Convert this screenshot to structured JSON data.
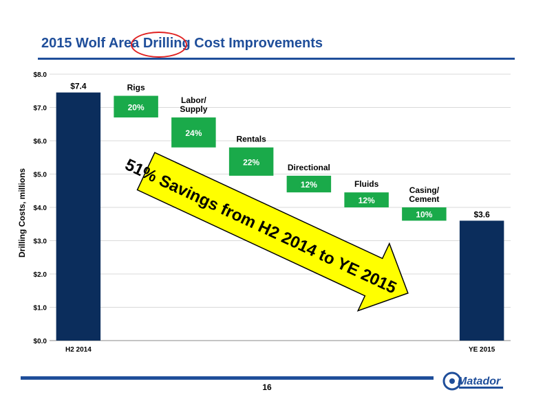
{
  "slide": {
    "title": "2015 Wolf Area Drilling Cost Improvements",
    "page_number": "16",
    "callout": "51% Savings from H2 2014 to YE 2015",
    "logo_text": "Matador"
  },
  "colors": {
    "title": "#1f4e9a",
    "total_bar": "#0b2d5c",
    "savings_bar": "#1aaa4a",
    "arrow_fill": "#ffff00",
    "annotation_circle": "#e02020"
  },
  "chart_data": {
    "type": "bar",
    "subtype": "waterfall",
    "ylabel": "Drilling Costs, millions",
    "ylim": [
      0,
      8
    ],
    "yticks": [
      "$0.0",
      "$1.0",
      "$2.0",
      "$3.0",
      "$4.0",
      "$5.0",
      "$6.0",
      "$7.0",
      "$8.0"
    ],
    "grid": true,
    "categories": [
      "H2 2014",
      "Rigs",
      "Labor/ Supply",
      "Rentals",
      "Directional",
      "Fluids",
      "Casing/ Cement",
      "YE 2015"
    ],
    "xtick_labels": [
      "H2 2014",
      "",
      "",
      "",
      "",
      "",
      "",
      "YE 2015"
    ],
    "bars": [
      {
        "name": "H2 2014",
        "kind": "total",
        "start": 0,
        "end": 7.45,
        "label": "$7.4",
        "top_label": ""
      },
      {
        "name": "Rigs",
        "kind": "step",
        "start": 7.35,
        "end": 6.7,
        "label": "20%",
        "top_label": "Rigs"
      },
      {
        "name": "Labor/ Supply",
        "kind": "step",
        "start": 6.7,
        "end": 5.8,
        "label": "24%",
        "top_label": "Labor/\nSupply"
      },
      {
        "name": "Rentals",
        "kind": "step",
        "start": 5.8,
        "end": 4.95,
        "label": "22%",
        "top_label": "Rentals"
      },
      {
        "name": "Directional",
        "kind": "step",
        "start": 4.95,
        "end": 4.45,
        "label": "12%",
        "top_label": "Directional"
      },
      {
        "name": "Fluids",
        "kind": "step",
        "start": 4.45,
        "end": 4.0,
        "label": "12%",
        "top_label": "Fluids"
      },
      {
        "name": "Casing/ Cement",
        "kind": "step",
        "start": 4.0,
        "end": 3.6,
        "label": "10%",
        "top_label": "Casing/\nCement"
      },
      {
        "name": "YE 2015",
        "kind": "total",
        "start": 0,
        "end": 3.6,
        "label": "$3.6",
        "top_label": ""
      }
    ]
  }
}
